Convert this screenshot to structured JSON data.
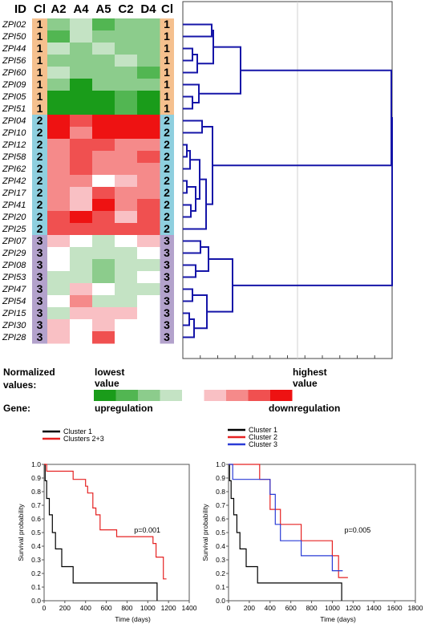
{
  "heatmap": {
    "id_header": "ID",
    "cl_header_left": "Cl",
    "cl_header_right": "Cl",
    "columns": [
      "A2",
      "A4",
      "A5",
      "C2",
      "D4"
    ],
    "rows": [
      {
        "id": "ZPI02",
        "cl": "1",
        "v": [
          -2,
          -1,
          -3,
          -2,
          -2
        ]
      },
      {
        "id": "ZPI50",
        "cl": "1",
        "v": [
          -3,
          -1,
          -2,
          -2,
          -2
        ]
      },
      {
        "id": "ZPI44",
        "cl": "1",
        "v": [
          -1,
          -2,
          -1,
          -2,
          -2
        ]
      },
      {
        "id": "ZPI56",
        "cl": "1",
        "v": [
          -2,
          -2,
          -2,
          -1,
          -2
        ]
      },
      {
        "id": "ZPI60",
        "cl": "1",
        "v": [
          -1,
          -2,
          -2,
          -2,
          -3
        ]
      },
      {
        "id": "ZPI09",
        "cl": "1",
        "v": [
          -2,
          -4,
          -2,
          -2,
          -2
        ]
      },
      {
        "id": "ZPI05",
        "cl": "1",
        "v": [
          -5,
          -4,
          -4,
          -3,
          -5
        ]
      },
      {
        "id": "ZPI51",
        "cl": "1",
        "v": [
          -4,
          -4,
          -4,
          -3,
          -4
        ]
      },
      {
        "id": "ZPI04",
        "cl": "2",
        "v": [
          5,
          3,
          4,
          4,
          5
        ]
      },
      {
        "id": "ZPI10",
        "cl": "2",
        "v": [
          4,
          2,
          4,
          5,
          4
        ]
      },
      {
        "id": "ZPI12",
        "cl": "2",
        "v": [
          2,
          3,
          3,
          2,
          2
        ]
      },
      {
        "id": "ZPI58",
        "cl": "2",
        "v": [
          2,
          3,
          2,
          2,
          3
        ]
      },
      {
        "id": "ZPI62",
        "cl": "2",
        "v": [
          2,
          3,
          2,
          2,
          2
        ]
      },
      {
        "id": "ZPI42",
        "cl": "2",
        "v": [
          2,
          2,
          0,
          1,
          2
        ]
      },
      {
        "id": "ZPI17",
        "cl": "2",
        "v": [
          2,
          1,
          3,
          2,
          2
        ]
      },
      {
        "id": "ZPI41",
        "cl": "2",
        "v": [
          2,
          1,
          4,
          2,
          3
        ]
      },
      {
        "id": "ZPI20",
        "cl": "2",
        "v": [
          3,
          5,
          3,
          1,
          3
        ]
      },
      {
        "id": "ZPI25",
        "cl": "2",
        "v": [
          3,
          3,
          3,
          3,
          3
        ]
      },
      {
        "id": "ZPI07",
        "cl": "3",
        "v": [
          1,
          0,
          -1,
          0,
          1
        ]
      },
      {
        "id": "ZPI29",
        "cl": "3",
        "v": [
          0,
          -1,
          -1,
          -1,
          0
        ]
      },
      {
        "id": "ZPI08",
        "cl": "3",
        "v": [
          0,
          -1,
          -2,
          -1,
          -1
        ]
      },
      {
        "id": "ZPI53",
        "cl": "3",
        "v": [
          -1,
          -1,
          -2,
          -1,
          0
        ]
      },
      {
        "id": "ZPI47",
        "cl": "3",
        "v": [
          -1,
          1,
          0,
          -1,
          -1
        ]
      },
      {
        "id": "ZPI54",
        "cl": "3",
        "v": [
          0,
          2,
          -1,
          -1,
          0
        ]
      },
      {
        "id": "ZPI15",
        "cl": "3",
        "v": [
          -1,
          1,
          1,
          1,
          0
        ]
      },
      {
        "id": "ZPI30",
        "cl": "3",
        "v": [
          1,
          0,
          1,
          0,
          0
        ]
      },
      {
        "id": "ZPI28",
        "cl": "3",
        "v": [
          1,
          0,
          3,
          0,
          0
        ]
      }
    ],
    "cluster_colors": {
      "1": "#f5c08e",
      "2": "#8ecfdf",
      "3": "#b3a2cc"
    },
    "scale_colors": [
      "#1a9c1a",
      "#52b652",
      "#8ccc8c",
      "#c4e3c4",
      "#ffffff",
      "#f9c0c4",
      "#f58a8a",
      "#f05050",
      "#ee1212"
    ]
  },
  "legend": {
    "normalized_label": "Normalized",
    "values_label": "values:",
    "lowest_label": "lowest",
    "lowest_value": "value",
    "highest_label": "highest",
    "highest_value": "value",
    "gene_label": "Gene:",
    "up_label": "upregulation",
    "down_label": "downregulation"
  },
  "chart_data": [
    {
      "type": "line",
      "xlabel": "Time (days)",
      "ylabel": "Survival probability",
      "xlim": [
        0,
        1400
      ],
      "ylim": [
        0,
        1
      ],
      "xticks": [
        0,
        200,
        400,
        600,
        800,
        1000,
        1200,
        1400
      ],
      "yticks": [
        0,
        0.1,
        0.2,
        0.3,
        0.4,
        0.5,
        0.6,
        0.7,
        0.8,
        0.9,
        1.0
      ],
      "annotation": "p=0.001",
      "series": [
        {
          "name": "Cluster 1",
          "color": "#000000",
          "x": [
            0,
            10,
            10,
            25,
            25,
            50,
            50,
            80,
            80,
            110,
            110,
            170,
            170,
            210,
            210,
            280,
            280,
            400,
            400,
            1090,
            1090
          ],
          "y": [
            1,
            1,
            0.88,
            0.88,
            0.75,
            0.75,
            0.63,
            0.63,
            0.5,
            0.5,
            0.38,
            0.38,
            0.25,
            0.25,
            0.25,
            0.25,
            0.13,
            0.13,
            0.13,
            0.13,
            0
          ]
        },
        {
          "name": "Clusters 2+3",
          "color": "#e52222",
          "x": [
            0,
            25,
            25,
            280,
            280,
            400,
            400,
            420,
            420,
            470,
            470,
            500,
            500,
            540,
            540,
            700,
            700,
            1050,
            1050,
            1080,
            1080,
            1150,
            1150,
            1180
          ],
          "y": [
            1,
            1,
            0.95,
            0.95,
            0.89,
            0.89,
            0.84,
            0.84,
            0.79,
            0.79,
            0.68,
            0.68,
            0.63,
            0.63,
            0.52,
            0.52,
            0.47,
            0.47,
            0.42,
            0.42,
            0.32,
            0.32,
            0.16,
            0.16
          ]
        }
      ]
    },
    {
      "type": "line",
      "xlabel": "Time (days)",
      "ylabel": "Survival probability",
      "xlim": [
        0,
        1800
      ],
      "ylim": [
        0,
        1
      ],
      "xticks": [
        0,
        200,
        400,
        600,
        800,
        1000,
        1200,
        1400,
        1600,
        1800
      ],
      "yticks": [
        0,
        0.1,
        0.2,
        0.3,
        0.4,
        0.5,
        0.6,
        0.7,
        0.8,
        0.9,
        1.0
      ],
      "annotation": "p=0.005",
      "series": [
        {
          "name": "Cluster 1",
          "color": "#000000",
          "x": [
            0,
            10,
            10,
            25,
            25,
            50,
            50,
            80,
            80,
            110,
            110,
            170,
            170,
            210,
            210,
            280,
            280,
            400,
            400,
            1090,
            1090
          ],
          "y": [
            1,
            1,
            0.88,
            0.88,
            0.75,
            0.75,
            0.63,
            0.63,
            0.5,
            0.5,
            0.38,
            0.38,
            0.25,
            0.25,
            0.25,
            0.25,
            0.13,
            0.13,
            0.13,
            0.13,
            0
          ]
        },
        {
          "name": "Cluster 2",
          "color": "#e52222",
          "x": [
            0,
            300,
            300,
            400,
            400,
            500,
            500,
            700,
            700,
            1000,
            1000,
            1060,
            1060,
            1120,
            1120,
            1150
          ],
          "y": [
            1,
            1,
            0.89,
            0.89,
            0.67,
            0.67,
            0.56,
            0.56,
            0.44,
            0.44,
            0.33,
            0.33,
            0.17,
            0.17,
            0.17,
            0.17
          ]
        },
        {
          "name": "Cluster 3",
          "color": "#2a3bd6",
          "x": [
            0,
            40,
            40,
            400,
            400,
            450,
            450,
            500,
            500,
            700,
            700,
            1000,
            1000,
            1060,
            1060,
            1100
          ],
          "y": [
            1,
            1,
            0.89,
            0.89,
            0.78,
            0.78,
            0.56,
            0.56,
            0.44,
            0.44,
            0.33,
            0.33,
            0.22,
            0.22,
            0.22,
            0.22
          ]
        }
      ]
    }
  ]
}
